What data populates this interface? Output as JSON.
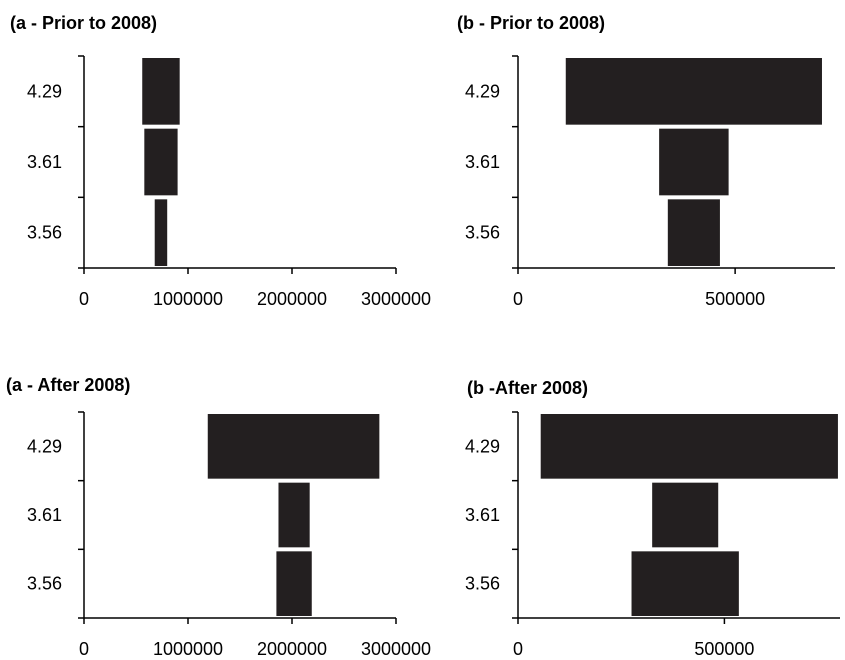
{
  "chart_data": [
    {
      "type": "bar",
      "orientation": "horizontal",
      "style": "floating",
      "title": "(a - Prior to 2008)",
      "categories": [
        "4.29",
        "3.61",
        "3.56"
      ],
      "series": [
        {
          "values": [
            [
              560000,
              920000
            ],
            [
              580000,
              900000
            ],
            [
              680000,
              800000
            ]
          ]
        }
      ],
      "xlim": [
        0,
        3000000
      ],
      "xticks": [
        0,
        1000000,
        2000000,
        3000000
      ],
      "xtick_labels": [
        "0",
        "1000000",
        "2000000",
        "3000000"
      ],
      "bar_color": "#231f20",
      "grid": false,
      "legend": "none"
    },
    {
      "type": "bar",
      "orientation": "horizontal",
      "style": "floating",
      "title": "(b - Prior to 2008)",
      "categories": [
        "4.29",
        "3.61",
        "3.56"
      ],
      "series": [
        {
          "values": [
            [
              110000,
              700000
            ],
            [
              325000,
              485000
            ],
            [
              345000,
              465000
            ]
          ]
        }
      ],
      "xlim": [
        0,
        730000
      ],
      "xticks": [
        0,
        500000
      ],
      "xtick_labels": [
        "0",
        "500000"
      ],
      "bar_color": "#231f20",
      "grid": false,
      "legend": "none"
    },
    {
      "type": "bar",
      "orientation": "horizontal",
      "style": "floating",
      "title": "(a - After 2008)",
      "categories": [
        "4.29",
        "3.61",
        "3.56"
      ],
      "series": [
        {
          "values": [
            [
              1190000,
              2840000
            ],
            [
              1870000,
              2170000
            ],
            [
              1850000,
              2190000
            ]
          ]
        }
      ],
      "xlim": [
        0,
        3000000
      ],
      "xticks": [
        0,
        1000000,
        2000000,
        3000000
      ],
      "xtick_labels": [
        "0",
        "1000000",
        "2000000",
        "3000000"
      ],
      "bar_color": "#231f20",
      "grid": false,
      "legend": "none"
    },
    {
      "type": "bar",
      "orientation": "horizontal",
      "style": "floating",
      "title": "(b -After 2008)",
      "categories": [
        "4.29",
        "3.61",
        "3.56"
      ],
      "series": [
        {
          "values": [
            [
              55000,
              775000
            ],
            [
              325000,
              485000
            ],
            [
              275000,
              535000
            ]
          ]
        }
      ],
      "xlim": [
        0,
        780000
      ],
      "xticks": [
        0,
        500000
      ],
      "xtick_labels": [
        "0",
        "500000"
      ],
      "bar_color": "#231f20",
      "grid": false,
      "legend": "none"
    }
  ]
}
